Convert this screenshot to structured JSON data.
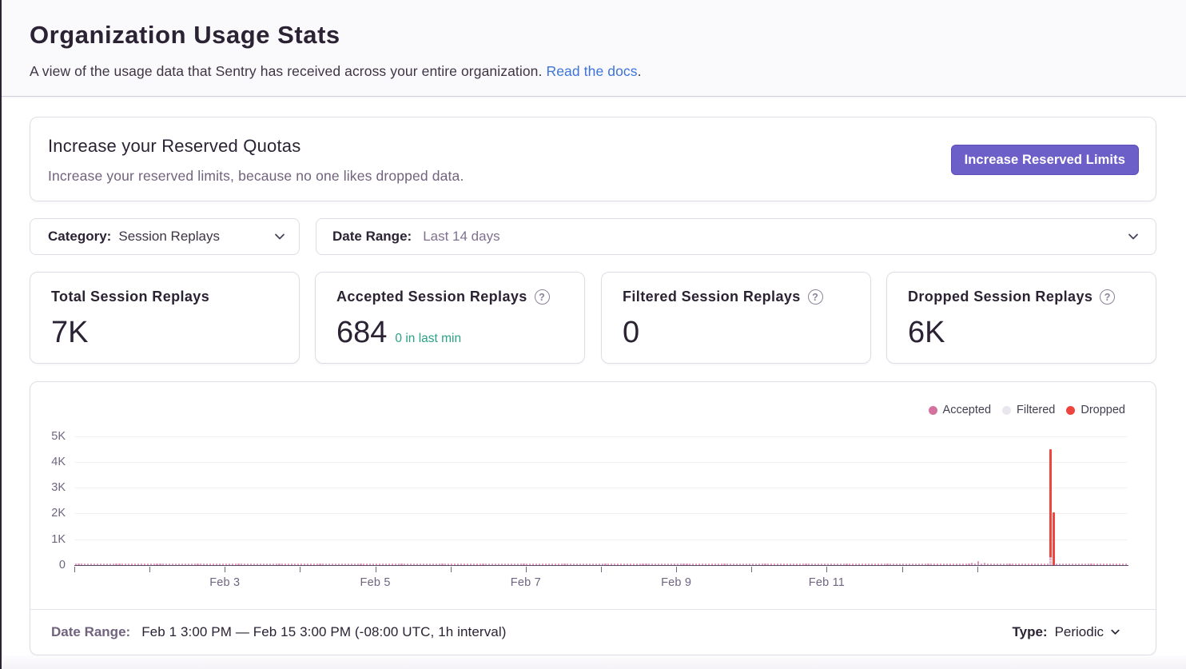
{
  "page": {
    "title": "Organization Usage Stats",
    "subtitle": "A view of the usage data that Sentry has received across your entire organization.",
    "docs_link": "Read the docs",
    "subtitle_suffix": "."
  },
  "quota_banner": {
    "title": "Increase your Reserved Quotas",
    "description": "Increase your reserved limits, because no one likes dropped data.",
    "button": "Increase Reserved Limits"
  },
  "filters": {
    "category": {
      "label": "Category:",
      "value": "Session Replays"
    },
    "date_range": {
      "label": "Date Range:",
      "value": "Last 14 days"
    }
  },
  "score_cards": [
    {
      "title": "Total Session Replays",
      "value": "7K"
    },
    {
      "title": "Accepted Session Replays",
      "value": "684",
      "trend": "0 in last min",
      "help_icon": "?"
    },
    {
      "title": "Filtered Session Replays",
      "value": "0",
      "help_icon": "?"
    },
    {
      "title": "Dropped Session Replays",
      "value": "6K",
      "help_icon": "?"
    }
  ],
  "chart_data": {
    "type": "bar",
    "title": "",
    "stacked": true,
    "grid": true,
    "legend_position": "top-right",
    "x_axis": {
      "start": "Feb 1 3:00 PM",
      "end": "Feb 15 3:00 PM",
      "interval": "1h",
      "bucket_count": 336,
      "tick_every_days": 1,
      "tick_day_indices": [
        0,
        1,
        2,
        3,
        4,
        5,
        6,
        7,
        8,
        9,
        10,
        11,
        12
      ],
      "tick_labels": [
        "Feb 3",
        "Feb 5",
        "Feb 7",
        "Feb 9",
        "Feb 11"
      ],
      "label_day_indices": [
        2,
        4,
        6,
        8,
        10
      ]
    },
    "y_axis": {
      "min": 0,
      "max": 5000,
      "tick_labels": [
        "0",
        "1K",
        "2K",
        "3K",
        "4K",
        "5K"
      ]
    },
    "series": [
      {
        "name": "Accepted",
        "color": "#E583B1",
        "total": 684,
        "baseline_value_per_hour": 2,
        "spikes": [
          {
            "hour_index": 286,
            "value": 90
          },
          {
            "hour_index": 288,
            "value": 150
          },
          {
            "hour_index": 290,
            "value": 90
          },
          {
            "hour_index": 311,
            "value": 300
          }
        ]
      },
      {
        "name": "Filtered",
        "color": "#E9E7ED",
        "total": 0,
        "spikes": []
      },
      {
        "name": "Dropped",
        "color": "#EE453E",
        "total": 6250,
        "spikes": [
          {
            "hour_index": 311,
            "value": 4200
          },
          {
            "hour_index": 312,
            "value": 2050
          }
        ]
      }
    ],
    "legend": [
      {
        "label": "Accepted",
        "color": "#D4719F"
      },
      {
        "label": "Filtered",
        "color": "#E9E7ED"
      },
      {
        "label": "Dropped",
        "color": "#ED453D"
      }
    ]
  },
  "chart_footer": {
    "date_range_label": "Date Range:",
    "date_range_value": "Feb 1 3:00 PM — Feb 15 3:00 PM (-08:00 UTC, 1h interval)",
    "type_label": "Type:",
    "type_value": "Periodic"
  }
}
